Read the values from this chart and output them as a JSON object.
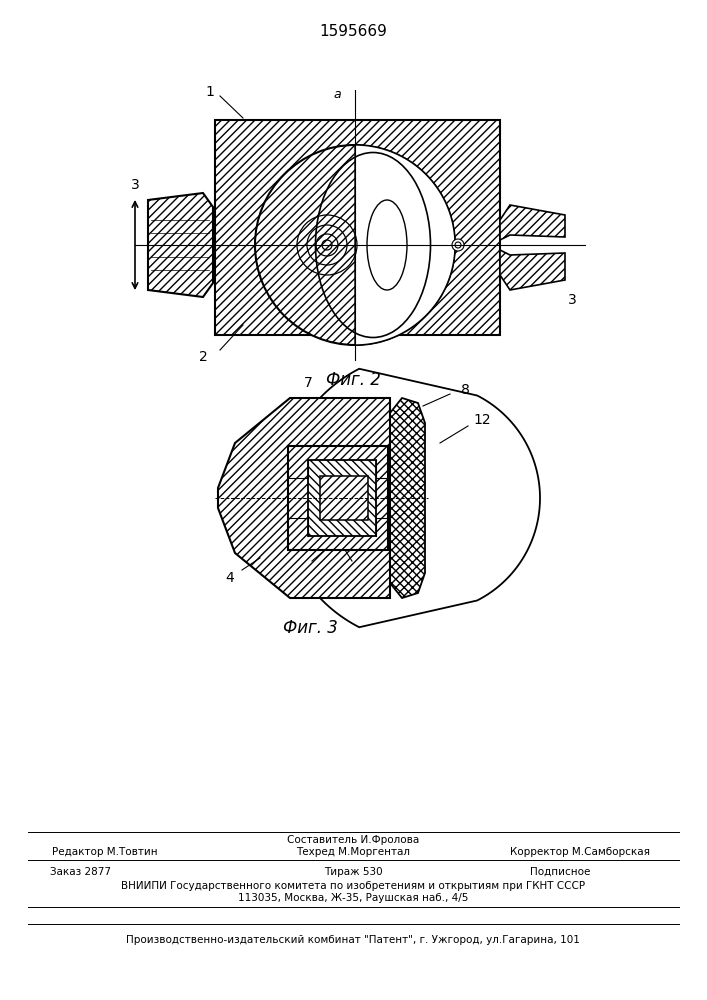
{
  "patent_number": "1595669",
  "fig2_caption": "Фиг. 2",
  "fig3_caption": "Фиг. 3",
  "footer_line1_center_top": "Составитель И.Фролова",
  "footer_line1_center_bot": "Техред М.Моргентал",
  "footer_line1_left": "Редактор М.Товтин",
  "footer_line1_right": "Корректор М.Самборская",
  "footer_line2_left": "Заказ 2877",
  "footer_line2_center": "Тираж 530",
  "footer_line2_right": "Подписное",
  "footer_line3": "ВНИИПИ Государственного комитета по изобретениям и открытиям при ГКНТ СССР",
  "footer_line4": "113035, Москва, Ж-35, Раушская наб., 4/5",
  "footer_line5": "Производственно-издательский комбинат \"Патент\", г. Ужгород, ул.Гагарина, 101",
  "bg_color": "#ffffff"
}
